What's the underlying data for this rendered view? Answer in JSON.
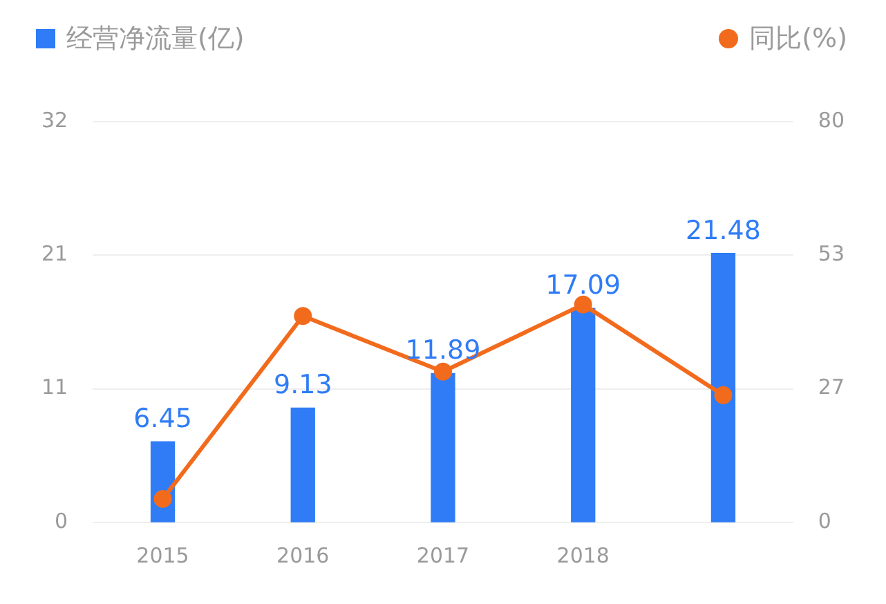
{
  "chart_data": {
    "type": "bar",
    "categories": [
      "2015",
      "2016",
      "2017",
      "2018",
      null
    ],
    "series": [
      {
        "name": "经营净流量(亿)",
        "color": "#2f7cf6",
        "values": [
          6.45,
          9.13,
          11.89,
          17.09,
          21.48
        ],
        "value_labels": [
          "6.45",
          "9.13",
          "11.89",
          "17.09",
          "21.48"
        ]
      },
      {
        "name": "同比(%)",
        "type": "line",
        "axis": "y2",
        "color": "#f26b1d",
        "values": [
          4.7,
          41.2,
          30.1,
          43.5,
          25.4
        ]
      }
    ],
    "ylim": [
      0,
      32
    ],
    "yticks": [
      0,
      {
        "value": 10.67,
        "label": "11"
      },
      {
        "value": 21.33,
        "label": "21"
      },
      32
    ],
    "y2lim": [
      0,
      80
    ],
    "y2ticks": [
      0,
      {
        "value": 26.67,
        "label": "27"
      },
      {
        "value": 53.33,
        "label": "53"
      },
      80
    ],
    "grid": "y",
    "legend": "top",
    "marker": "circle",
    "line_style": "solid"
  }
}
